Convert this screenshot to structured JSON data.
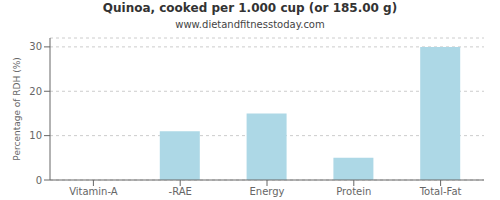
{
  "chart_data": {
    "type": "bar",
    "title": "Quinoa, cooked per 1.000 cup (or 185.00 g)",
    "subtitle": "www.dietandfitnesstoday.com",
    "categories": [
      "Vitamin-A",
      "-RAE",
      "Energy",
      "Protein",
      "Total-Fat"
    ],
    "values": [
      0,
      11,
      15,
      5,
      30
    ],
    "color": "#add8e6",
    "ylabel": "Percentage of RDH (%)",
    "ylim": [
      0,
      32
    ],
    "yticks": [
      0,
      10,
      20,
      30
    ],
    "grid": true
  }
}
